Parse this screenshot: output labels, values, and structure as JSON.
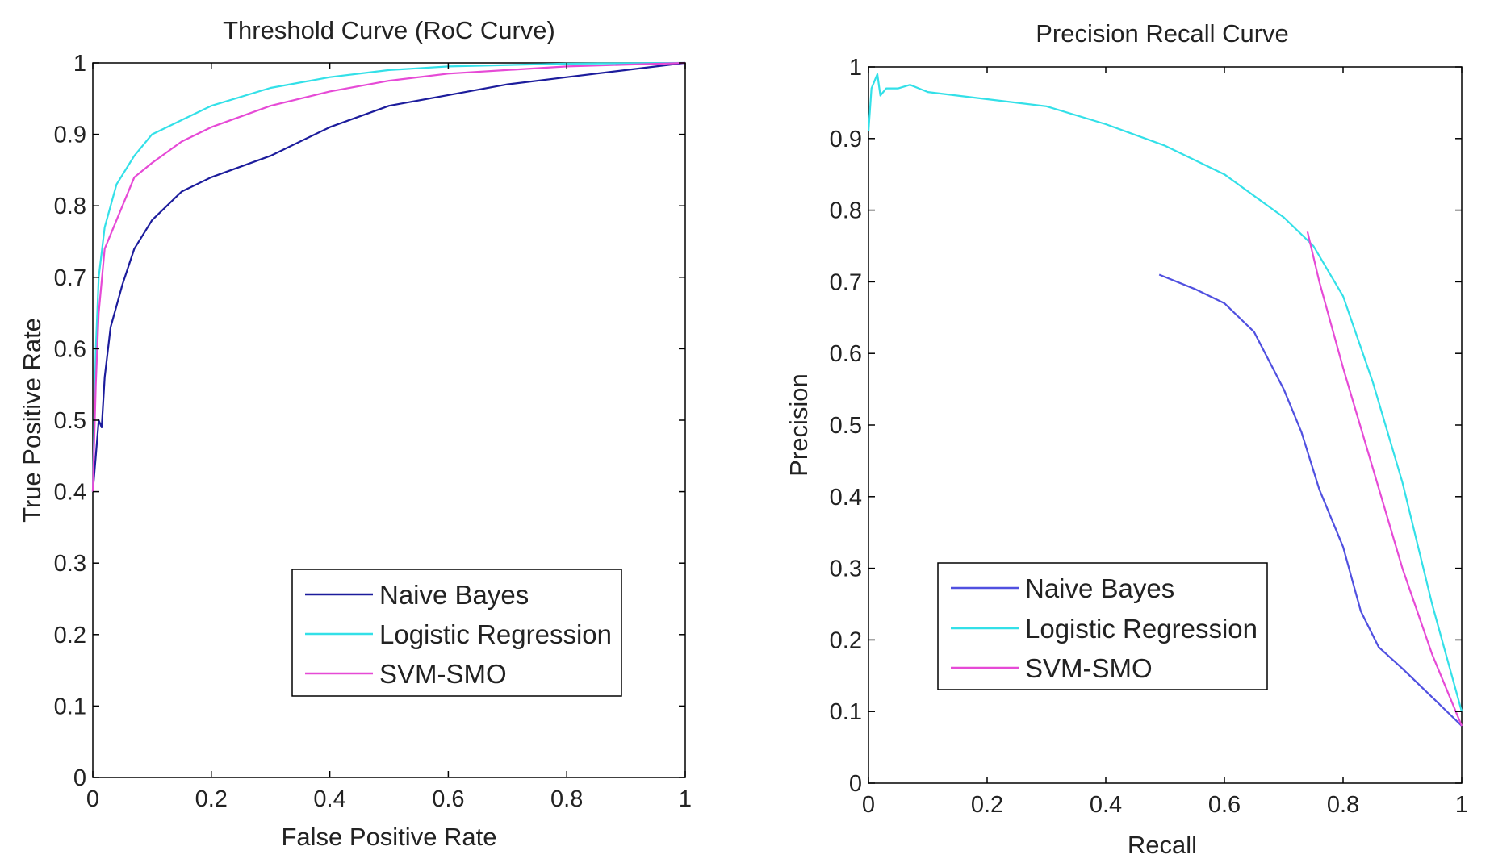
{
  "chart_data": [
    {
      "type": "line",
      "title": "Threshold Curve (RoC Curve)",
      "xlabel": "False Positive Rate",
      "ylabel": "True Positive Rate",
      "xlim": [
        0,
        1
      ],
      "ylim": [
        0,
        1
      ],
      "xticks": [
        0,
        0.2,
        0.4,
        0.6,
        0.8,
        1
      ],
      "xtick_labels": [
        "0",
        "0.2",
        "0.4",
        "0.6",
        "0.8",
        "1"
      ],
      "yticks": [
        0,
        0.1,
        0.2,
        0.3,
        0.4,
        0.5,
        0.6,
        0.7,
        0.8,
        0.9,
        1
      ],
      "ytick_labels": [
        "0",
        "0.1",
        "0.2",
        "0.3",
        "0.4",
        "0.5",
        "0.6",
        "0.7",
        "0.8",
        "0.9",
        "1"
      ],
      "grid": false,
      "legend_position": "bottom-right",
      "series": [
        {
          "name": "Naive Bayes",
          "color": "#1c1c9c",
          "points": [
            [
              0,
              0.4
            ],
            [
              0.005,
              0.45
            ],
            [
              0.01,
              0.5
            ],
            [
              0.015,
              0.49
            ],
            [
              0.02,
              0.56
            ],
            [
              0.03,
              0.63
            ],
            [
              0.05,
              0.69
            ],
            [
              0.07,
              0.74
            ],
            [
              0.1,
              0.78
            ],
            [
              0.15,
              0.82
            ],
            [
              0.2,
              0.84
            ],
            [
              0.3,
              0.87
            ],
            [
              0.4,
              0.91
            ],
            [
              0.5,
              0.94
            ],
            [
              0.6,
              0.955
            ],
            [
              0.7,
              0.97
            ],
            [
              0.8,
              0.98
            ],
            [
              0.9,
              0.99
            ],
            [
              1,
              1
            ]
          ]
        },
        {
          "name": "Logistic Regression",
          "color": "#33e0e8",
          "points": [
            [
              0,
              0.4
            ],
            [
              0.005,
              0.6
            ],
            [
              0.01,
              0.7
            ],
            [
              0.02,
              0.77
            ],
            [
              0.04,
              0.83
            ],
            [
              0.07,
              0.87
            ],
            [
              0.1,
              0.9
            ],
            [
              0.15,
              0.92
            ],
            [
              0.2,
              0.94
            ],
            [
              0.3,
              0.965
            ],
            [
              0.4,
              0.98
            ],
            [
              0.5,
              0.99
            ],
            [
              0.6,
              0.995
            ],
            [
              0.8,
              0.999
            ],
            [
              1,
              1
            ]
          ]
        },
        {
          "name": "SVM-SMO",
          "color": "#e64ad6",
          "points": [
            [
              0,
              0.4
            ],
            [
              0.005,
              0.55
            ],
            [
              0.01,
              0.65
            ],
            [
              0.02,
              0.74
            ],
            [
              0.04,
              0.78
            ],
            [
              0.07,
              0.84
            ],
            [
              0.1,
              0.86
            ],
            [
              0.15,
              0.89
            ],
            [
              0.2,
              0.91
            ],
            [
              0.3,
              0.94
            ],
            [
              0.4,
              0.96
            ],
            [
              0.5,
              0.975
            ],
            [
              0.6,
              0.985
            ],
            [
              0.8,
              0.995
            ],
            [
              1,
              1
            ]
          ]
        }
      ]
    },
    {
      "type": "line",
      "title": "Precision Recall Curve",
      "xlabel": "Recall",
      "ylabel": "Precision",
      "xlim": [
        0,
        1
      ],
      "ylim": [
        0,
        1
      ],
      "xticks": [
        0,
        0.2,
        0.4,
        0.6,
        0.8,
        1
      ],
      "xtick_labels": [
        "0",
        "0.2",
        "0.4",
        "0.6",
        "0.8",
        "1"
      ],
      "yticks": [
        0,
        0.1,
        0.2,
        0.3,
        0.4,
        0.5,
        0.6,
        0.7,
        0.8,
        0.9,
        1
      ],
      "ytick_labels": [
        "0",
        "0.1",
        "0.2",
        "0.3",
        "0.4",
        "0.5",
        "0.6",
        "0.7",
        "0.8",
        "0.9",
        "1"
      ],
      "grid": false,
      "legend_position": "bottom-left",
      "series": [
        {
          "name": "Naive Bayes",
          "color": "#5050e0",
          "points": [
            [
              0.49,
              0.71
            ],
            [
              0.55,
              0.69
            ],
            [
              0.6,
              0.67
            ],
            [
              0.65,
              0.63
            ],
            [
              0.7,
              0.55
            ],
            [
              0.73,
              0.49
            ],
            [
              0.76,
              0.41
            ],
            [
              0.8,
              0.33
            ],
            [
              0.83,
              0.24
            ],
            [
              0.86,
              0.19
            ],
            [
              0.9,
              0.16
            ],
            [
              0.95,
              0.12
            ],
            [
              1,
              0.08
            ]
          ]
        },
        {
          "name": "Logistic Regression",
          "color": "#33e0e8",
          "points": [
            [
              0,
              0.91
            ],
            [
              0.005,
              0.97
            ],
            [
              0.01,
              0.98
            ],
            [
              0.015,
              0.99
            ],
            [
              0.02,
              0.96
            ],
            [
              0.03,
              0.97
            ],
            [
              0.05,
              0.97
            ],
            [
              0.07,
              0.975
            ],
            [
              0.1,
              0.965
            ],
            [
              0.2,
              0.955
            ],
            [
              0.3,
              0.945
            ],
            [
              0.4,
              0.92
            ],
            [
              0.5,
              0.89
            ],
            [
              0.6,
              0.85
            ],
            [
              0.7,
              0.79
            ],
            [
              0.75,
              0.75
            ],
            [
              0.8,
              0.68
            ],
            [
              0.85,
              0.56
            ],
            [
              0.9,
              0.42
            ],
            [
              0.95,
              0.25
            ],
            [
              1,
              0.1
            ]
          ]
        },
        {
          "name": "SVM-SMO",
          "color": "#e64ad6",
          "points": [
            [
              0.74,
              0.77
            ],
            [
              0.76,
              0.7
            ],
            [
              0.8,
              0.58
            ],
            [
              0.85,
              0.44
            ],
            [
              0.9,
              0.3
            ],
            [
              0.95,
              0.18
            ],
            [
              1,
              0.08
            ]
          ]
        }
      ]
    }
  ]
}
